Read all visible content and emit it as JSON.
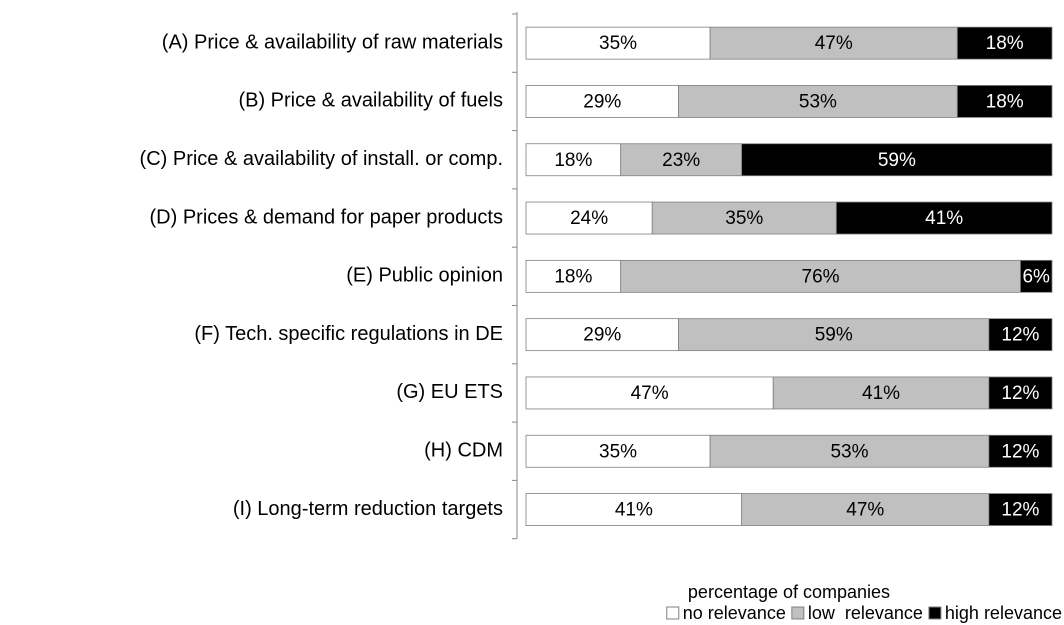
{
  "chart_data": {
    "type": "stacked-barh",
    "categories": [
      "(A) Price & availability of raw materials",
      "(B) Price & availability of fuels",
      "(C) Price & availability of install. or comp.",
      "(D) Prices & demand for paper products",
      "(E) Public opinion",
      "(F) Tech. specific regulations in DE",
      "(G) EU ETS",
      "(H) CDM",
      "(I) Long-term reduction targets"
    ],
    "series": [
      {
        "name": "no relevance",
        "color": "#ffffff",
        "values": [
          35,
          29,
          18,
          24,
          18,
          29,
          47,
          35,
          41
        ],
        "value_labels": [
          "35%",
          "29%",
          "18%",
          "24%",
          "18%",
          "29%",
          "47%",
          "35%",
          "41%"
        ]
      },
      {
        "name": "low  relevance",
        "color": "#c0c0c0",
        "values": [
          47,
          53,
          23,
          35,
          76,
          59,
          41,
          53,
          47
        ],
        "value_labels": [
          "47%",
          "53%",
          "23%",
          "35%",
          "76%",
          "59%",
          "41%",
          "53%",
          "47%"
        ]
      },
      {
        "name": "high relevance",
        "color": "#000000",
        "values": [
          18,
          18,
          59,
          41,
          6,
          12,
          12,
          12,
          12
        ],
        "value_labels": [
          "18%",
          "18%",
          "59%",
          "41%",
          "6%",
          "12%",
          "12%",
          "12%",
          "12%"
        ]
      }
    ],
    "xlabel": "percentage of companies",
    "xlim": [
      0,
      100
    ],
    "legend": "bottom-right"
  }
}
